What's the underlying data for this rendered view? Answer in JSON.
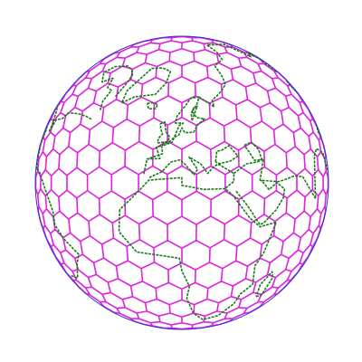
{
  "map": {
    "projection": "orthographic",
    "grid_type": "hexagonal-geodesic",
    "view_center": {
      "lon": 10,
      "lat": 35
    },
    "colors": {
      "background": "#ffffff",
      "globe_outline": "#3333cc",
      "hex_grid": "#dd22dd",
      "coastline": "#1a7a1a"
    }
  }
}
